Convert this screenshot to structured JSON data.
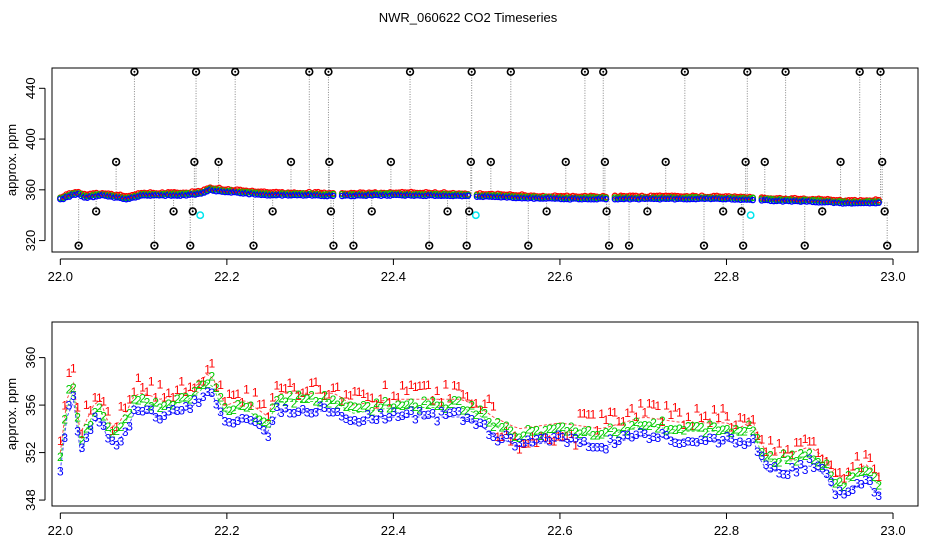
{
  "title": "NWR_060622  CO2 Timeseries",
  "chart_data": [
    {
      "type": "scatter",
      "ylabel": "approx. ppm",
      "xlim": [
        21.99,
        23.03
      ],
      "ylim": [
        311,
        456
      ],
      "x_ticks": [
        "22.0",
        "22.2",
        "22.4",
        "22.6",
        "22.8",
        "23.0"
      ],
      "y_ticks": [
        "320",
        "360",
        "400",
        "440"
      ],
      "colors": {
        "series1": "#ff0000",
        "series2": "#00cc00",
        "series3": "#0000ff",
        "calibration": "#00e5ee",
        "flagged": "#000000"
      },
      "base_series": [
        [
          22.0,
          352.5
        ],
        [
          22.02,
          357.2
        ],
        [
          22.03,
          354.0
        ],
        [
          22.05,
          355.8
        ],
        [
          22.08,
          353.0
        ],
        [
          22.1,
          355.8
        ],
        [
          22.15,
          356.0
        ],
        [
          22.17,
          357.0
        ],
        [
          22.18,
          360.0
        ],
        [
          22.2,
          358.5
        ],
        [
          22.25,
          356.0
        ],
        [
          22.3,
          356.0
        ],
        [
          22.33,
          355.5
        ],
        [
          22.4,
          356.0
        ],
        [
          22.48,
          355.5
        ],
        [
          22.5,
          355.0
        ],
        [
          22.55,
          354.0
        ],
        [
          22.6,
          353.0
        ],
        [
          22.65,
          353.0
        ],
        [
          22.7,
          353.0
        ],
        [
          22.75,
          353.0
        ],
        [
          22.8,
          353.0
        ],
        [
          22.83,
          352.5
        ],
        [
          22.86,
          351.5
        ],
        [
          22.9,
          351.0
        ],
        [
          22.95,
          349.5
        ],
        [
          22.98,
          350.0
        ]
      ],
      "calibration_points": [
        {
          "x": 22.168,
          "y": 340
        },
        {
          "x": 22.499,
          "y": 340
        },
        {
          "x": 22.829,
          "y": 340
        }
      ],
      "flagged_points": [
        {
          "x": 22.022,
          "y": 316
        },
        {
          "x": 22.043,
          "y": 343
        },
        {
          "x": 22.067,
          "y": 382
        },
        {
          "x": 22.089,
          "y": 453
        },
        {
          "x": 22.113,
          "y": 316
        },
        {
          "x": 22.136,
          "y": 343
        },
        {
          "x": 22.156,
          "y": 316
        },
        {
          "x": 22.159,
          "y": 343
        },
        {
          "x": 22.161,
          "y": 382
        },
        {
          "x": 22.163,
          "y": 453
        },
        {
          "x": 22.19,
          "y": 382
        },
        {
          "x": 22.21,
          "y": 453
        },
        {
          "x": 22.232,
          "y": 316
        },
        {
          "x": 22.255,
          "y": 343
        },
        {
          "x": 22.277,
          "y": 382
        },
        {
          "x": 22.299,
          "y": 453
        },
        {
          "x": 22.322,
          "y": 453
        },
        {
          "x": 22.323,
          "y": 382
        },
        {
          "x": 22.325,
          "y": 343
        },
        {
          "x": 22.328,
          "y": 316
        },
        {
          "x": 22.352,
          "y": 316
        },
        {
          "x": 22.374,
          "y": 343
        },
        {
          "x": 22.397,
          "y": 382
        },
        {
          "x": 22.42,
          "y": 453
        },
        {
          "x": 22.443,
          "y": 316
        },
        {
          "x": 22.465,
          "y": 343
        },
        {
          "x": 22.488,
          "y": 316
        },
        {
          "x": 22.491,
          "y": 343
        },
        {
          "x": 22.493,
          "y": 382
        },
        {
          "x": 22.494,
          "y": 453
        },
        {
          "x": 22.517,
          "y": 382
        },
        {
          "x": 22.541,
          "y": 453
        },
        {
          "x": 22.562,
          "y": 316
        },
        {
          "x": 22.584,
          "y": 343
        },
        {
          "x": 22.607,
          "y": 382
        },
        {
          "x": 22.63,
          "y": 453
        },
        {
          "x": 22.652,
          "y": 453
        },
        {
          "x": 22.654,
          "y": 382
        },
        {
          "x": 22.656,
          "y": 343
        },
        {
          "x": 22.659,
          "y": 316
        },
        {
          "x": 22.683,
          "y": 316
        },
        {
          "x": 22.705,
          "y": 343
        },
        {
          "x": 22.727,
          "y": 382
        },
        {
          "x": 22.75,
          "y": 453
        },
        {
          "x": 22.773,
          "y": 316
        },
        {
          "x": 22.796,
          "y": 343
        },
        {
          "x": 22.818,
          "y": 343
        },
        {
          "x": 22.82,
          "y": 316
        },
        {
          "x": 22.823,
          "y": 382
        },
        {
          "x": 22.825,
          "y": 453
        },
        {
          "x": 22.846,
          "y": 382
        },
        {
          "x": 22.871,
          "y": 453
        },
        {
          "x": 22.894,
          "y": 316
        },
        {
          "x": 22.915,
          "y": 343
        },
        {
          "x": 22.937,
          "y": 382
        },
        {
          "x": 22.96,
          "y": 453
        },
        {
          "x": 22.985,
          "y": 453
        },
        {
          "x": 22.987,
          "y": 382
        },
        {
          "x": 22.99,
          "y": 343
        },
        {
          "x": 22.993,
          "y": 316
        }
      ]
    },
    {
      "type": "scatter",
      "ylabel": "approx. ppm",
      "xlim": [
        21.99,
        23.03
      ],
      "ylim": [
        347.5,
        363.0
      ],
      "x_ticks": [
        "22.0",
        "22.2",
        "22.4",
        "22.6",
        "22.8",
        "23.0"
      ],
      "y_ticks": [
        "348",
        "352",
        "356",
        "360"
      ],
      "series_markers": [
        "1",
        "2",
        "3"
      ],
      "colors": {
        "series1": "#ff0000",
        "series2": "#00cc00",
        "series3": "#0000ff"
      },
      "base_series": [
        [
          22.0,
          351.0
        ],
        [
          22.005,
          354.0
        ],
        [
          22.01,
          356.5
        ],
        [
          22.015,
          357.3
        ],
        [
          22.02,
          355.0
        ],
        [
          22.025,
          352.0
        ],
        [
          22.03,
          354.0
        ],
        [
          22.035,
          353.5
        ],
        [
          22.04,
          355.0
        ],
        [
          22.05,
          355.5
        ],
        [
          22.055,
          354.0
        ],
        [
          22.06,
          353.0
        ],
        [
          22.07,
          353.5
        ],
        [
          22.08,
          354.5
        ],
        [
          22.09,
          356.0
        ],
        [
          22.1,
          356.0
        ],
        [
          22.12,
          355.5
        ],
        [
          22.15,
          356.0
        ],
        [
          22.17,
          357.0
        ],
        [
          22.18,
          358.0
        ],
        [
          22.19,
          356.0
        ],
        [
          22.2,
          355.0
        ],
        [
          22.22,
          355.5
        ],
        [
          22.25,
          354.0
        ],
        [
          22.26,
          356.0
        ],
        [
          22.3,
          356.0
        ],
        [
          22.33,
          356.0
        ],
        [
          22.35,
          355.0
        ],
        [
          22.4,
          355.5
        ],
        [
          22.45,
          355.5
        ],
        [
          22.48,
          355.5
        ],
        [
          22.5,
          355.0
        ],
        [
          22.52,
          354.0
        ],
        [
          22.55,
          353.0
        ],
        [
          22.6,
          353.5
        ],
        [
          22.65,
          353.0
        ],
        [
          22.7,
          354.0
        ],
        [
          22.75,
          353.5
        ],
        [
          22.8,
          353.5
        ],
        [
          22.82,
          353.0
        ],
        [
          22.83,
          354.0
        ],
        [
          22.84,
          352.0
        ],
        [
          22.85,
          350.8
        ],
        [
          22.86,
          351.0
        ],
        [
          22.88,
          351.0
        ],
        [
          22.9,
          351.5
        ],
        [
          22.92,
          350.5
        ],
        [
          22.93,
          349.0
        ],
        [
          22.94,
          348.8
        ],
        [
          22.95,
          349.5
        ],
        [
          22.97,
          350.0
        ],
        [
          22.98,
          349.0
        ]
      ]
    }
  ]
}
